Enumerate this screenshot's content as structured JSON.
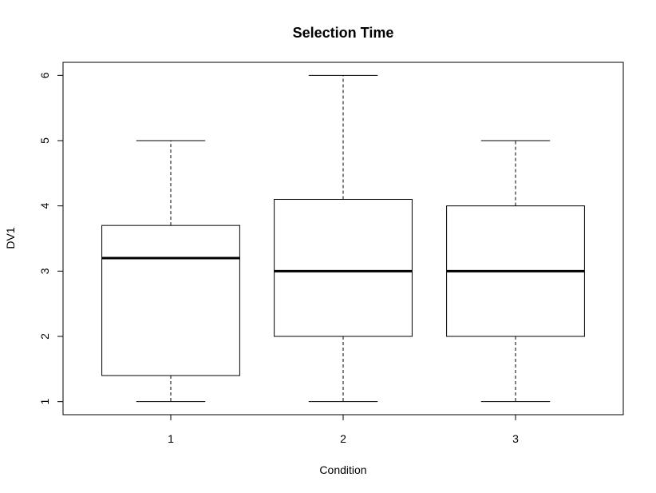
{
  "chart_data": {
    "type": "boxplot",
    "title": "Selection Time",
    "xlabel": "Condition",
    "ylabel": "DV1",
    "categories": [
      "1",
      "2",
      "3"
    ],
    "ylim": [
      0.8,
      6.2
    ],
    "yticks": [
      "1",
      "2",
      "3",
      "4",
      "5",
      "6"
    ],
    "grid": false,
    "boxes": [
      {
        "category": "1",
        "min": 1,
        "q1": 1.4,
        "median": 3.2,
        "q3": 3.7,
        "max": 5
      },
      {
        "category": "2",
        "min": 1,
        "q1": 2,
        "median": 3,
        "q3": 4.1,
        "max": 6
      },
      {
        "category": "3",
        "min": 1,
        "q1": 2,
        "median": 3,
        "q3": 4,
        "max": 5
      }
    ]
  }
}
